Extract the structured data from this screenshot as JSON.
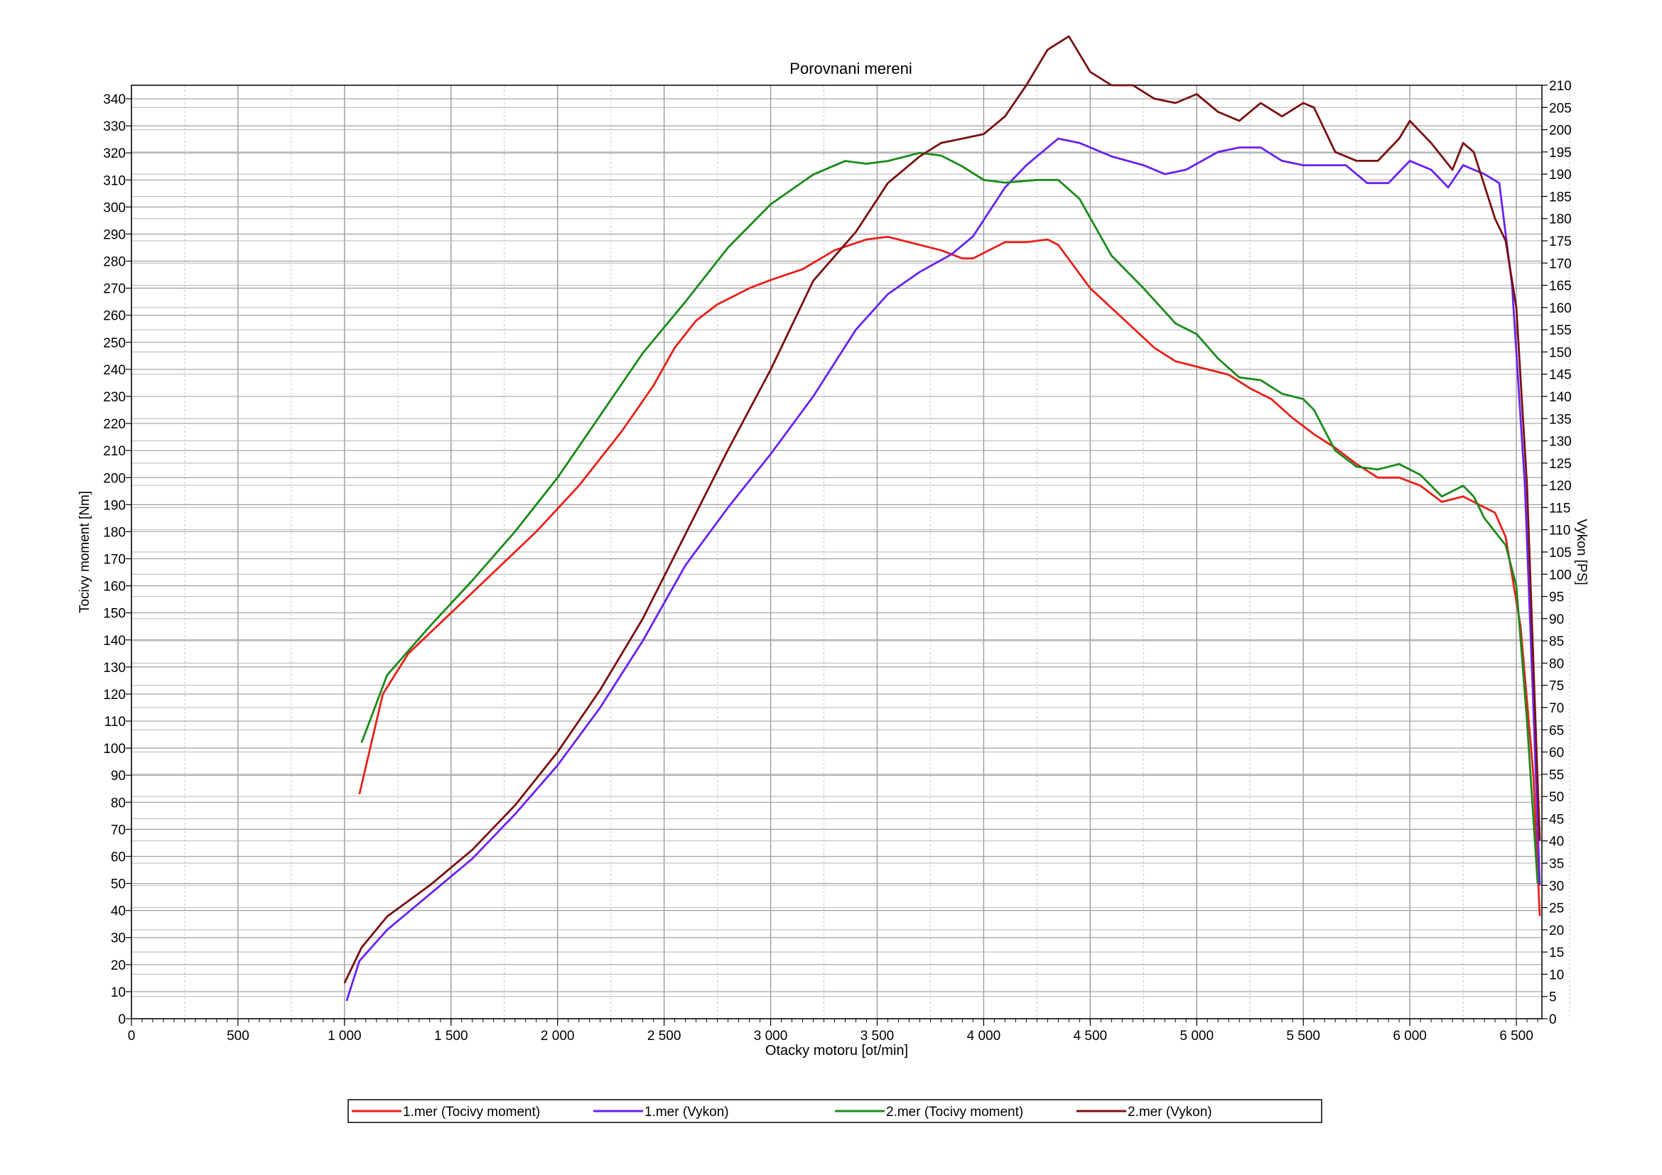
{
  "chart_data": {
    "type": "line",
    "title": "Porovnani mereni",
    "xlabel": "Otacky motoru [ot/min]",
    "ylabel_left": "Tocivy moment [Nm]",
    "ylabel_right": "Vykon [PS]",
    "xlim": [
      0,
      6620
    ],
    "ylim_left": [
      0,
      345
    ],
    "ylim_right": [
      0,
      210
    ],
    "x_ticks": [
      0,
      500,
      1000,
      1500,
      2000,
      2500,
      3000,
      3500,
      4000,
      4500,
      5000,
      5500,
      6000,
      6500
    ],
    "x_tick_labels": [
      "0",
      "500",
      "1 000",
      "1 500",
      "2 000",
      "2 500",
      "3 000",
      "3 500",
      "4 000",
      "4 500",
      "5 000",
      "5 500",
      "6 000",
      "6 500"
    ],
    "left_ticks": [
      0,
      10,
      20,
      30,
      40,
      50,
      60,
      70,
      80,
      90,
      100,
      110,
      120,
      130,
      140,
      150,
      160,
      170,
      180,
      190,
      200,
      210,
      220,
      230,
      240,
      250,
      260,
      270,
      280,
      290,
      300,
      310,
      320,
      330,
      340
    ],
    "right_ticks": [
      0,
      5,
      10,
      15,
      20,
      25,
      30,
      35,
      40,
      45,
      50,
      55,
      60,
      65,
      70,
      75,
      80,
      85,
      90,
      95,
      100,
      105,
      110,
      115,
      120,
      125,
      130,
      135,
      140,
      145,
      150,
      155,
      160,
      165,
      170,
      175,
      180,
      185,
      190,
      195,
      200,
      205,
      210
    ],
    "grid": true,
    "legend_position": "bottom",
    "series": [
      {
        "name": "1.mer  (Tocivy moment)",
        "axis": "left",
        "color": "#e8201a",
        "points": [
          [
            1070,
            83
          ],
          [
            1180,
            120
          ],
          [
            1300,
            135
          ],
          [
            1500,
            150
          ],
          [
            1700,
            165
          ],
          [
            1900,
            180
          ],
          [
            2100,
            197
          ],
          [
            2300,
            217
          ],
          [
            2450,
            234
          ],
          [
            2550,
            248
          ],
          [
            2650,
            258
          ],
          [
            2750,
            264
          ],
          [
            2900,
            270
          ],
          [
            3000,
            273
          ],
          [
            3150,
            277
          ],
          [
            3300,
            284
          ],
          [
            3450,
            288
          ],
          [
            3550,
            289
          ],
          [
            3650,
            287
          ],
          [
            3800,
            284
          ],
          [
            3900,
            281
          ],
          [
            3950,
            281
          ],
          [
            4050,
            285
          ],
          [
            4100,
            287
          ],
          [
            4200,
            287
          ],
          [
            4300,
            288
          ],
          [
            4350,
            286
          ],
          [
            4500,
            270
          ],
          [
            4650,
            259
          ],
          [
            4800,
            248
          ],
          [
            4900,
            243
          ],
          [
            5000,
            241
          ],
          [
            5050,
            240
          ],
          [
            5150,
            238
          ],
          [
            5250,
            233
          ],
          [
            5350,
            229
          ],
          [
            5450,
            222
          ],
          [
            5550,
            216
          ],
          [
            5650,
            211
          ],
          [
            5750,
            205
          ],
          [
            5850,
            200
          ],
          [
            5950,
            200
          ],
          [
            6050,
            197
          ],
          [
            6150,
            191
          ],
          [
            6250,
            193
          ],
          [
            6300,
            191
          ],
          [
            6400,
            187
          ],
          [
            6450,
            178
          ],
          [
            6520,
            145
          ],
          [
            6580,
            90
          ],
          [
            6610,
            38
          ]
        ]
      },
      {
        "name": "1.mer  (Vykon)",
        "axis": "right",
        "color": "#6a22f0",
        "points": [
          [
            1010,
            4
          ],
          [
            1070,
            13
          ],
          [
            1200,
            20
          ],
          [
            1400,
            28
          ],
          [
            1600,
            36
          ],
          [
            1800,
            46
          ],
          [
            2000,
            57
          ],
          [
            2200,
            70
          ],
          [
            2400,
            85
          ],
          [
            2600,
            102
          ],
          [
            2800,
            115
          ],
          [
            3000,
            127
          ],
          [
            3200,
            140
          ],
          [
            3400,
            155
          ],
          [
            3550,
            163
          ],
          [
            3700,
            168
          ],
          [
            3850,
            172
          ],
          [
            3950,
            176
          ],
          [
            4100,
            187
          ],
          [
            4200,
            192
          ],
          [
            4350,
            198
          ],
          [
            4450,
            197
          ],
          [
            4600,
            194
          ],
          [
            4750,
            192
          ],
          [
            4850,
            190
          ],
          [
            4950,
            191
          ],
          [
            5100,
            195
          ],
          [
            5200,
            196
          ],
          [
            5300,
            196
          ],
          [
            5400,
            193
          ],
          [
            5500,
            192
          ],
          [
            5600,
            192
          ],
          [
            5700,
            192
          ],
          [
            5800,
            188
          ],
          [
            5900,
            188
          ],
          [
            6000,
            193
          ],
          [
            6100,
            191
          ],
          [
            6180,
            187
          ],
          [
            6250,
            192
          ],
          [
            6350,
            190
          ],
          [
            6420,
            188
          ],
          [
            6480,
            165
          ],
          [
            6540,
            120
          ],
          [
            6580,
            70
          ],
          [
            6610,
            30
          ]
        ]
      },
      {
        "name": "2.mer  (Tocivy moment)",
        "axis": "left",
        "color": "#1a8a1a",
        "points": [
          [
            1080,
            102
          ],
          [
            1200,
            127
          ],
          [
            1400,
            145
          ],
          [
            1600,
            162
          ],
          [
            1800,
            180
          ],
          [
            2000,
            200
          ],
          [
            2200,
            223
          ],
          [
            2400,
            246
          ],
          [
            2600,
            265
          ],
          [
            2800,
            285
          ],
          [
            3000,
            301
          ],
          [
            3200,
            312
          ],
          [
            3350,
            317
          ],
          [
            3450,
            316
          ],
          [
            3550,
            317
          ],
          [
            3700,
            320
          ],
          [
            3800,
            319
          ],
          [
            3900,
            315
          ],
          [
            4000,
            310
          ],
          [
            4100,
            309
          ],
          [
            4250,
            310
          ],
          [
            4350,
            310
          ],
          [
            4450,
            303
          ],
          [
            4600,
            282
          ],
          [
            4750,
            270
          ],
          [
            4900,
            257
          ],
          [
            5000,
            253
          ],
          [
            5100,
            244
          ],
          [
            5200,
            237
          ],
          [
            5300,
            236
          ],
          [
            5400,
            231
          ],
          [
            5500,
            229
          ],
          [
            5550,
            225
          ],
          [
            5650,
            210
          ],
          [
            5750,
            204
          ],
          [
            5850,
            203
          ],
          [
            5950,
            205
          ],
          [
            6050,
            201
          ],
          [
            6150,
            193
          ],
          [
            6250,
            197
          ],
          [
            6300,
            193
          ],
          [
            6350,
            185
          ],
          [
            6450,
            175
          ],
          [
            6500,
            160
          ],
          [
            6550,
            110
          ],
          [
            6600,
            50
          ]
        ]
      },
      {
        "name": "2.mer  (Vykon)",
        "axis": "right",
        "color": "#7a1010",
        "points": [
          [
            1000,
            8
          ],
          [
            1080,
            16
          ],
          [
            1200,
            23
          ],
          [
            1400,
            30
          ],
          [
            1600,
            38
          ],
          [
            1800,
            48
          ],
          [
            2000,
            60
          ],
          [
            2200,
            74
          ],
          [
            2400,
            90
          ],
          [
            2600,
            109
          ],
          [
            2800,
            128
          ],
          [
            3000,
            146
          ],
          [
            3200,
            166
          ],
          [
            3400,
            177
          ],
          [
            3550,
            188
          ],
          [
            3700,
            194
          ],
          [
            3800,
            197
          ],
          [
            3900,
            198
          ],
          [
            4000,
            199
          ],
          [
            4100,
            203
          ],
          [
            4200,
            210
          ],
          [
            4300,
            218
          ],
          [
            4400,
            221
          ],
          [
            4500,
            213
          ],
          [
            4600,
            210
          ],
          [
            4700,
            210
          ],
          [
            4800,
            207
          ],
          [
            4900,
            206
          ],
          [
            5000,
            208
          ],
          [
            5100,
            204
          ],
          [
            5200,
            202
          ],
          [
            5300,
            206
          ],
          [
            5400,
            203
          ],
          [
            5500,
            206
          ],
          [
            5550,
            205
          ],
          [
            5650,
            195
          ],
          [
            5750,
            193
          ],
          [
            5850,
            193
          ],
          [
            5950,
            198
          ],
          [
            6000,
            202
          ],
          [
            6100,
            197
          ],
          [
            6200,
            191
          ],
          [
            6250,
            197
          ],
          [
            6300,
            195
          ],
          [
            6400,
            180
          ],
          [
            6450,
            175
          ],
          [
            6500,
            160
          ],
          [
            6550,
            120
          ],
          [
            6580,
            80
          ],
          [
            6610,
            40
          ]
        ]
      }
    ]
  }
}
